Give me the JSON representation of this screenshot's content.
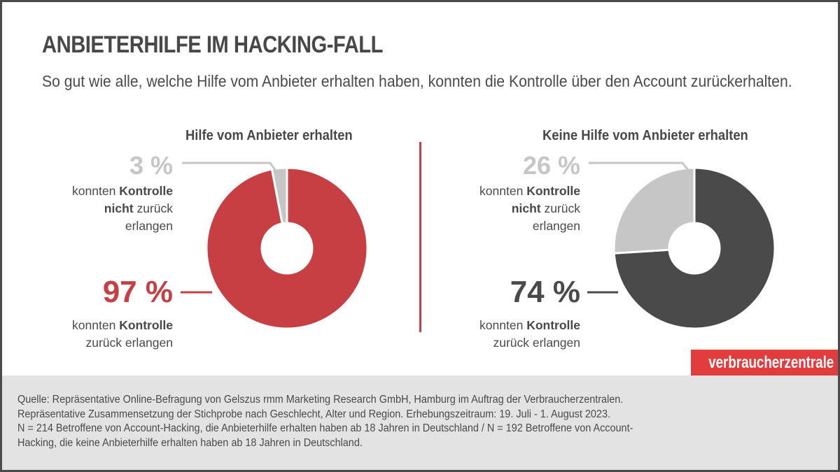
{
  "title": "ANBIETERHILFE IM HACKING-FALL",
  "subtitle": "So gut wie alle, welche Hilfe vom Anbieter erhalten haben, konnten die Kontrolle über den Account zurückerhalten.",
  "colors": {
    "red": "#c83f43",
    "dark": "#4a4a4a",
    "light_gray": "#c6c6c6",
    "divider": "#c8414a",
    "logo_bg": "#e23c3c",
    "footer_bg": "#e3e3e3"
  },
  "panels": [
    {
      "title": "Hilfe vom Anbieter erhalten",
      "small": {
        "value": "3 %",
        "line1_pre": "konnten ",
        "line1_bold": "Kontrolle",
        "line2_bold": "nicht",
        "line2_post": " zurück",
        "line3": "erlangen"
      },
      "big": {
        "value": "97 %",
        "line1_pre": "konnten ",
        "line1_bold": "Kontrolle",
        "line2": "zurück erlangen"
      }
    },
    {
      "title": "Keine Hilfe vom Anbieter erhalten",
      "small": {
        "value": "26 %",
        "line1_pre": "konnten ",
        "line1_bold": "Kontrolle",
        "line2_bold": "nicht",
        "line2_post": " zurück",
        "line3": "erlangen"
      },
      "big": {
        "value": "74 %",
        "line1_pre": "konnten ",
        "line1_bold": "Kontrolle",
        "line2": "zurück erlangen"
      }
    }
  ],
  "logo": "verbraucherzentrale",
  "footer": {
    "lines": [
      "Quelle: Repräsentative  Online-Befragung von Gelszus rmm Marketing Research GmbH, Hamburg im Auftrag der Verbraucherzentralen.",
      "Repräsentative  Zusammensetzung der Stichprobe nach Geschlecht, Alter und Region. Erhebungszeitraum: 19. Juli - 1. August 2023.",
      "N = 214 Betroffene von Account-Hacking, die Anbieterhilfe erhalten haben ab 18 Jahren in Deutschland  /  N = 192 Betroffene von Account-",
      "Hacking, die keine Anbieterhilfe erhalten haben ab 18 Jahren in Deutschland."
    ]
  },
  "chart_data": [
    {
      "type": "pie",
      "variant": "donut",
      "title": "Hilfe vom Anbieter erhalten",
      "categories": [
        "konnten Kontrolle zurück erlangen",
        "konnten Kontrolle nicht zurück erlangen"
      ],
      "values": [
        97,
        3
      ],
      "unit": "%",
      "colors": [
        "#c83f43",
        "#c6c6c6"
      ],
      "n": 214
    },
    {
      "type": "pie",
      "variant": "donut",
      "title": "Keine Hilfe vom Anbieter erhalten",
      "categories": [
        "konnten Kontrolle zurück erlangen",
        "konnten Kontrolle nicht zurück erlangen"
      ],
      "values": [
        74,
        26
      ],
      "unit": "%",
      "colors": [
        "#4a4a4a",
        "#c6c6c6"
      ],
      "n": 192
    }
  ]
}
